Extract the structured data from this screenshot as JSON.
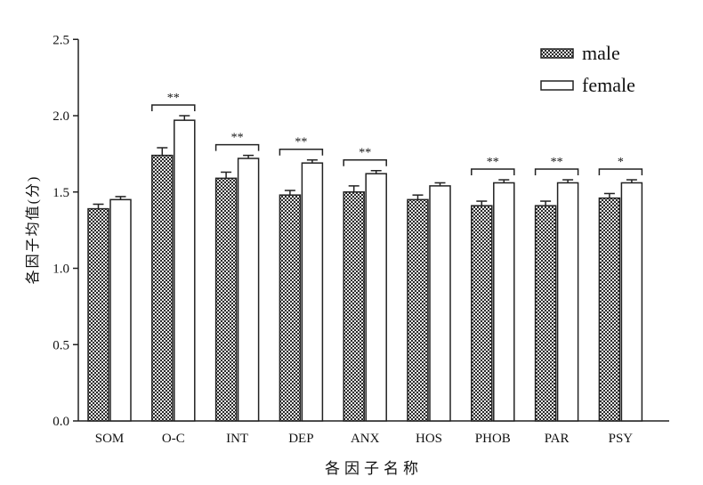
{
  "chart_data": {
    "type": "bar",
    "title": "",
    "xlabel": "各因子名称",
    "ylabel": "各因子均值(分)",
    "ylim": [
      0,
      2.5
    ],
    "yticks": [
      "0.0",
      "0.5",
      "1.0",
      "1.5",
      "2.0",
      "2.5"
    ],
    "ytick_values": [
      0,
      0.5,
      1.0,
      1.5,
      2.0,
      2.5
    ],
    "categories": [
      "SOM",
      "O-C",
      "INT",
      "DEP",
      "ANX",
      "HOS",
      "PHOB",
      "PAR",
      "PSY"
    ],
    "series": [
      {
        "name": "male",
        "pattern": "checker",
        "values": [
          1.39,
          1.74,
          1.59,
          1.48,
          1.5,
          1.45,
          1.41,
          1.41,
          1.46
        ],
        "errors": [
          0.03,
          0.05,
          0.04,
          0.03,
          0.04,
          0.03,
          0.03,
          0.03,
          0.03
        ]
      },
      {
        "name": "female",
        "pattern": "white",
        "values": [
          1.45,
          1.97,
          1.72,
          1.69,
          1.62,
          1.54,
          1.56,
          1.56,
          1.56
        ],
        "errors": [
          0.02,
          0.03,
          0.02,
          0.02,
          0.02,
          0.02,
          0.02,
          0.02,
          0.02
        ]
      }
    ],
    "significance": [
      "",
      "**",
      "**",
      "**",
      "**",
      "",
      "**",
      "**",
      "*"
    ],
    "legend": {
      "placement": "top-right",
      "entries": [
        "male",
        "female"
      ]
    },
    "grid": false,
    "colors": {
      "axis": "#222222",
      "dark": "#2a2a2a",
      "light": "#e8e8e8"
    }
  }
}
